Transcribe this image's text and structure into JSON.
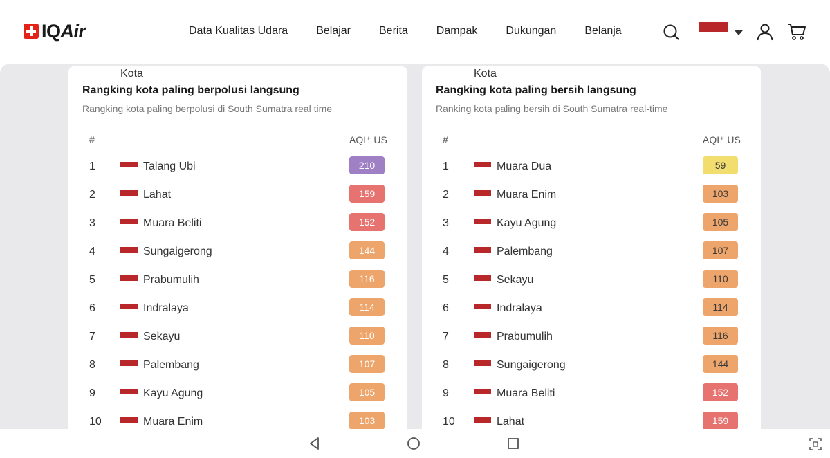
{
  "brand": {
    "name_a": "IQ",
    "name_b": "Air"
  },
  "nav": [
    "Data Kualitas Udara",
    "Belajar",
    "Berita",
    "Dampak",
    "Dukungan",
    "Belanja"
  ],
  "icons": {
    "search": "search-icon",
    "flag": "indonesia-flag-icon",
    "user": "user-icon",
    "cart": "cart-icon"
  },
  "flag_color": "#b8282b",
  "polluted": {
    "title": "Rangking kota paling berpolusi langsung",
    "subtitle": "Rangking kota paling berpolusi di South Sumatra real time",
    "headers": {
      "num": "#",
      "city": "Kota",
      "aqi": "AQI⁺ US"
    },
    "rows": [
      {
        "rank": "1",
        "city": "Talang Ubi",
        "aqi": "210",
        "color": "#a080c4",
        "text": "light"
      },
      {
        "rank": "2",
        "city": "Lahat",
        "aqi": "159",
        "color": "#e77370",
        "text": "light"
      },
      {
        "rank": "3",
        "city": "Muara Beliti",
        "aqi": "152",
        "color": "#e77370",
        "text": "light"
      },
      {
        "rank": "4",
        "city": "Sungaigerong",
        "aqi": "144",
        "color": "#eda56b",
        "text": "light"
      },
      {
        "rank": "5",
        "city": "Prabumulih",
        "aqi": "116",
        "color": "#eda56b",
        "text": "light"
      },
      {
        "rank": "6",
        "city": "Indralaya",
        "aqi": "114",
        "color": "#eda56b",
        "text": "light"
      },
      {
        "rank": "7",
        "city": "Sekayu",
        "aqi": "110",
        "color": "#eda56b",
        "text": "light"
      },
      {
        "rank": "8",
        "city": "Palembang",
        "aqi": "107",
        "color": "#eda56b",
        "text": "light"
      },
      {
        "rank": "9",
        "city": "Kayu Agung",
        "aqi": "105",
        "color": "#eda56b",
        "text": "light"
      },
      {
        "rank": "10",
        "city": "Muara Enim",
        "aqi": "103",
        "color": "#eda56b",
        "text": "light"
      }
    ]
  },
  "clean": {
    "title": "Rangking kota paling bersih langsung",
    "subtitle": "Ranking kota paling bersih di South Sumatra real-time",
    "headers": {
      "num": "#",
      "city": "Kota",
      "aqi": "AQI⁺ US"
    },
    "rows": [
      {
        "rank": "1",
        "city": "Muara Dua",
        "aqi": "59",
        "color": "#f1de6e",
        "text": "dark"
      },
      {
        "rank": "2",
        "city": "Muara Enim",
        "aqi": "103",
        "color": "#eda56b",
        "text": "dark"
      },
      {
        "rank": "3",
        "city": "Kayu Agung",
        "aqi": "105",
        "color": "#eda56b",
        "text": "dark"
      },
      {
        "rank": "4",
        "city": "Palembang",
        "aqi": "107",
        "color": "#eda56b",
        "text": "dark"
      },
      {
        "rank": "5",
        "city": "Sekayu",
        "aqi": "110",
        "color": "#eda56b",
        "text": "dark"
      },
      {
        "rank": "6",
        "city": "Indralaya",
        "aqi": "114",
        "color": "#eda56b",
        "text": "dark"
      },
      {
        "rank": "7",
        "city": "Prabumulih",
        "aqi": "116",
        "color": "#eda56b",
        "text": "dark"
      },
      {
        "rank": "8",
        "city": "Sungaigerong",
        "aqi": "144",
        "color": "#eda56b",
        "text": "dark"
      },
      {
        "rank": "9",
        "city": "Muara Beliti",
        "aqi": "152",
        "color": "#e77370",
        "text": "light"
      },
      {
        "rank": "10",
        "city": "Lahat",
        "aqi": "159",
        "color": "#e77370",
        "text": "light"
      }
    ]
  },
  "system_nav": {
    "back": "back-triangle-icon",
    "home": "home-circle-icon",
    "recent": "recent-apps-square-icon",
    "scan": "screen-scan-icon"
  }
}
